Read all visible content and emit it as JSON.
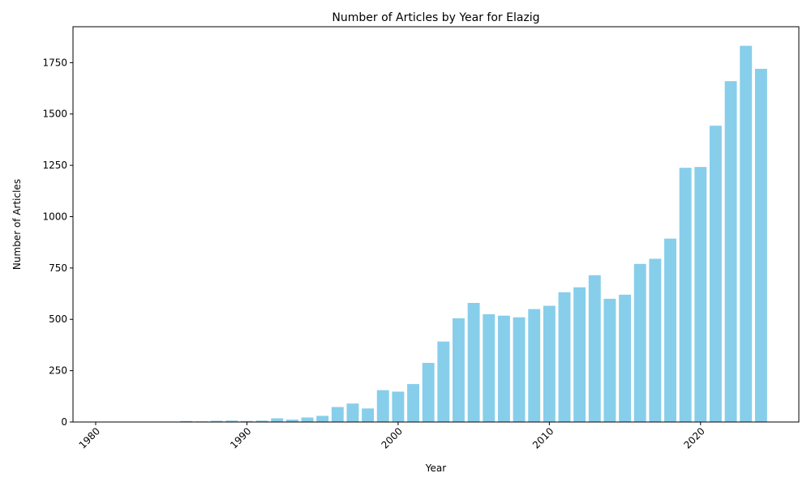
{
  "chart_data": {
    "type": "bar",
    "title": "Number of Articles by Year for Elazig",
    "xlabel": "Year",
    "ylabel": "Number of Articles",
    "x": [
      1981,
      1984,
      1985,
      1986,
      1987,
      1988,
      1989,
      1990,
      1991,
      1992,
      1993,
      1994,
      1995,
      1996,
      1997,
      1998,
      1999,
      2000,
      2001,
      2002,
      2003,
      2004,
      2005,
      2006,
      2007,
      2008,
      2009,
      2010,
      2011,
      2012,
      2013,
      2014,
      2015,
      2016,
      2017,
      2018,
      2019,
      2020,
      2021,
      2022,
      2023,
      2024
    ],
    "values": [
      2,
      2,
      2,
      5,
      3,
      6,
      7,
      5,
      7,
      18,
      12,
      22,
      30,
      73,
      90,
      66,
      155,
      148,
      185,
      288,
      392,
      505,
      580,
      525,
      518,
      510,
      550,
      566,
      632,
      656,
      715,
      600,
      620,
      770,
      795,
      893,
      1238,
      1242,
      1443,
      1660,
      1832,
      1720
    ],
    "xlim": [
      1978.5,
      2026.5
    ],
    "ylim": [
      0,
      1925
    ],
    "xticks": [
      1980,
      1990,
      2000,
      2010,
      2020
    ],
    "yticks": [
      0,
      250,
      500,
      750,
      1000,
      1250,
      1500,
      1750
    ],
    "bar_color": "#87CEEB",
    "grid": false
  }
}
